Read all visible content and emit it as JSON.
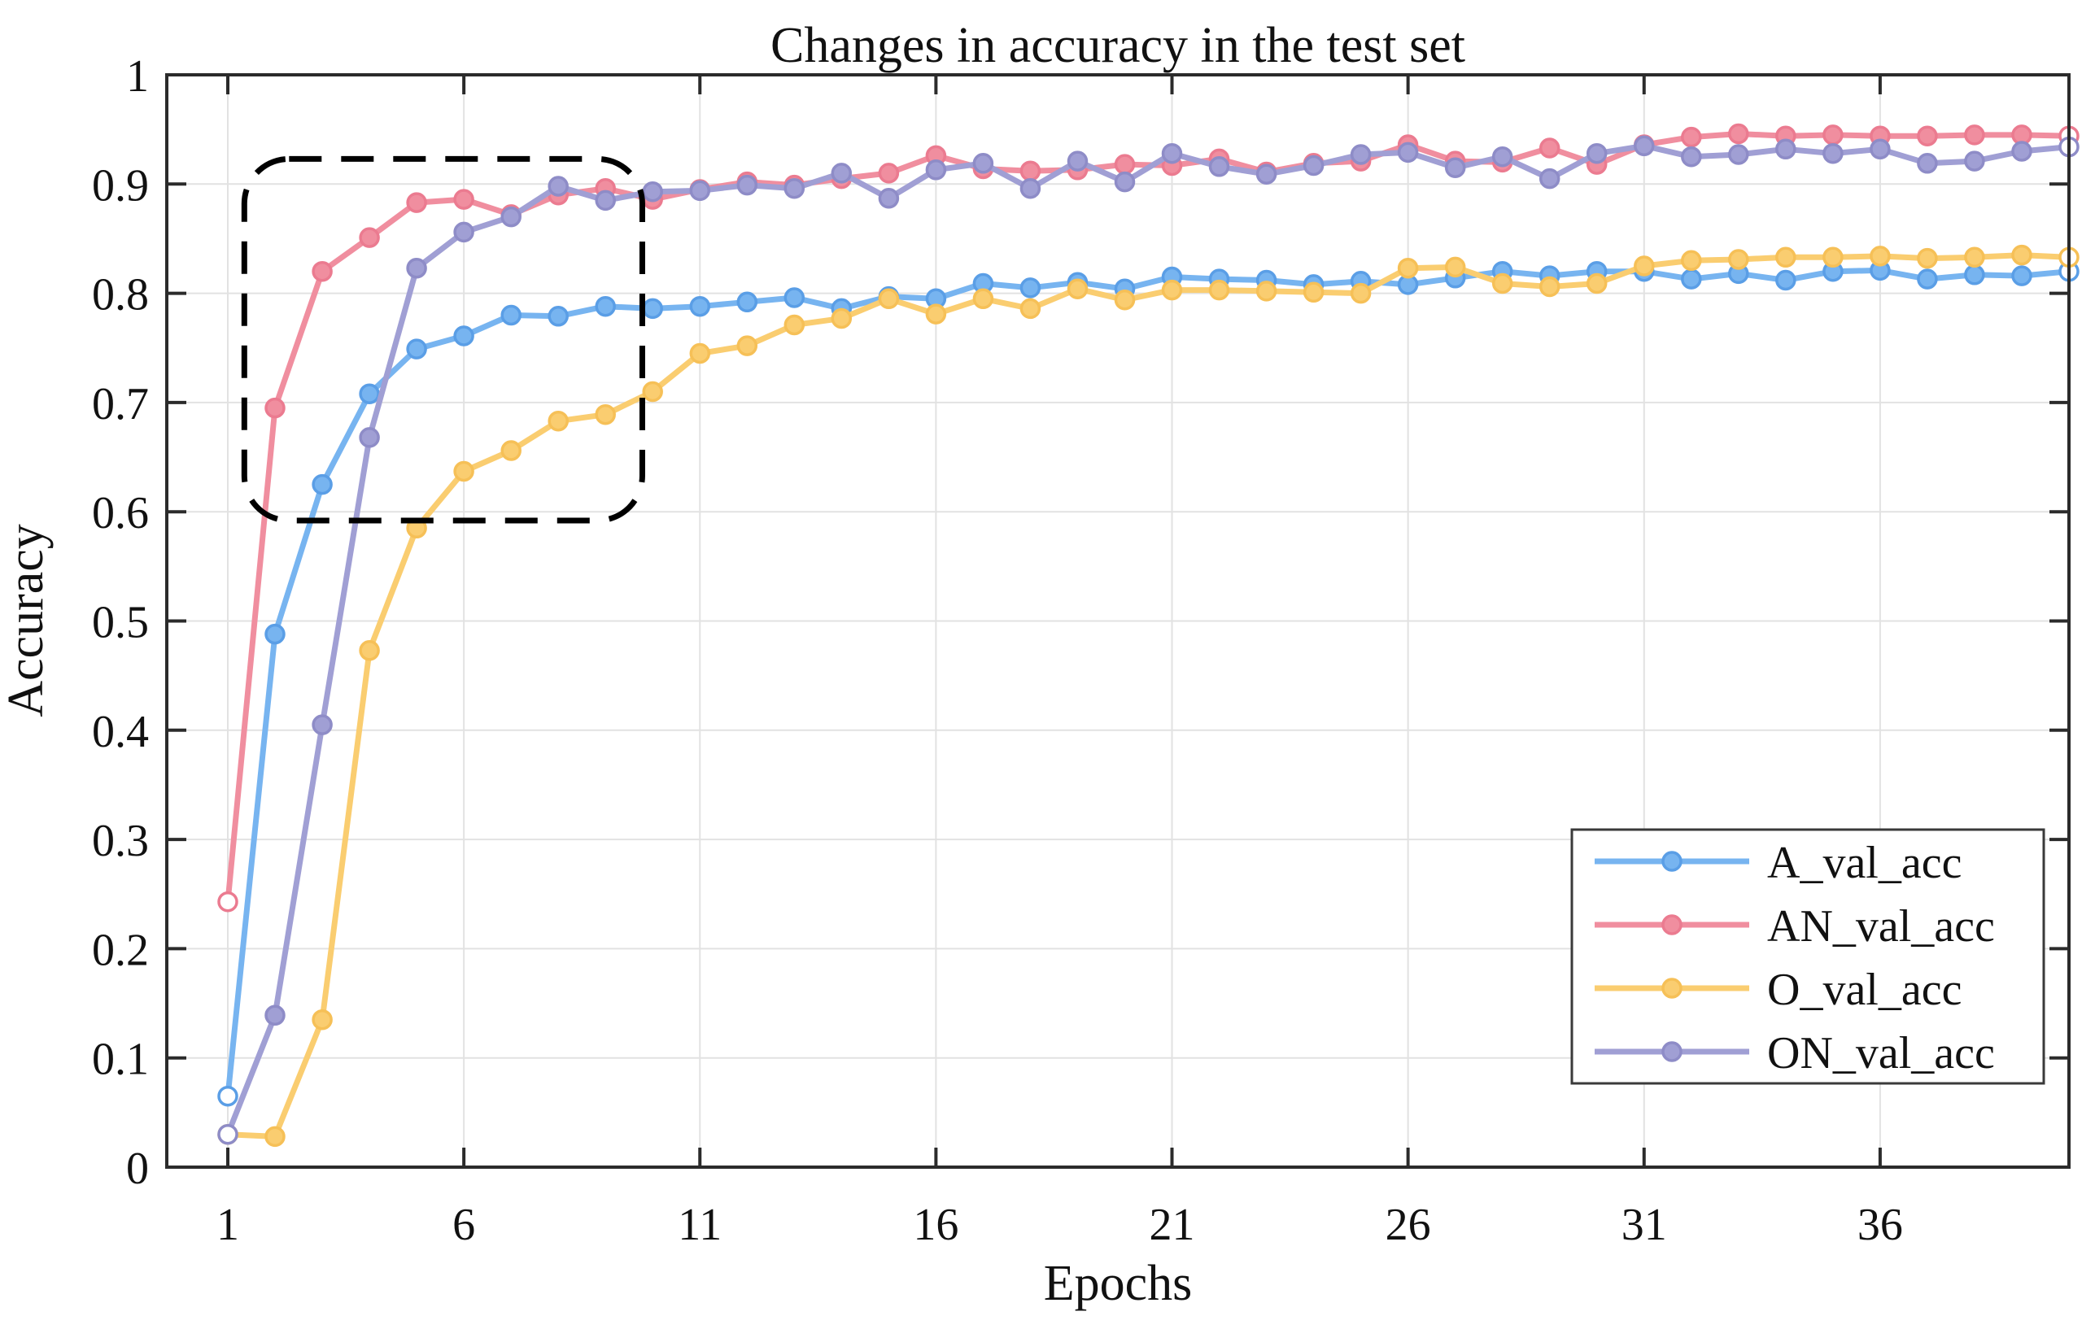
{
  "figure": {
    "background": "#ffffff",
    "frame_color": "#2b2b2b",
    "grid_color": "#e2e2e2",
    "text_color": "#111111",
    "annotation_color": "#000000"
  },
  "chart_data": {
    "type": "line",
    "title": "Changes in accuracy in the test set",
    "xlabel": "Epochs",
    "ylabel": "Accuracy",
    "x_ticks": [
      1,
      6,
      11,
      16,
      21,
      26,
      31,
      36
    ],
    "y_ticks": [
      0,
      0.1,
      0.2,
      0.3,
      0.4,
      0.5,
      0.6,
      0.7,
      0.8,
      0.9,
      1
    ],
    "y_tick_labels": [
      "0",
      "0.1",
      "0.2",
      "0.3",
      "0.4",
      "0.5",
      "0.6",
      "0.7",
      "0.8",
      "0.9",
      "1"
    ],
    "xlim": [
      -0.3,
      40
    ],
    "ylim": [
      0,
      1
    ],
    "grid": true,
    "legend_position": "lower-right",
    "x": [
      1,
      2,
      3,
      4,
      5,
      6,
      7,
      8,
      9,
      10,
      11,
      12,
      13,
      14,
      15,
      16,
      17,
      18,
      19,
      20,
      21,
      22,
      23,
      24,
      25,
      26,
      27,
      28,
      29,
      30,
      31,
      32,
      33,
      34,
      35,
      36,
      37,
      38,
      39,
      40
    ],
    "series": [
      {
        "name": "A_val_acc",
        "color": "#77b4f0",
        "marker_edge": "#5a9ee6",
        "values": [
          0.065,
          0.488,
          0.625,
          0.708,
          0.749,
          0.761,
          0.78,
          0.779,
          0.788,
          0.786,
          0.788,
          0.792,
          0.796,
          0.786,
          0.797,
          0.795,
          0.809,
          0.805,
          0.81,
          0.804,
          0.815,
          0.813,
          0.812,
          0.808,
          0.811,
          0.808,
          0.814,
          0.82,
          0.816,
          0.82,
          0.82,
          0.813,
          0.818,
          0.812,
          0.82,
          0.821,
          0.813,
          0.817,
          0.816,
          0.82
        ]
      },
      {
        "name": "AN_val_acc",
        "color": "#f08e9f",
        "marker_edge": "#eb7b90",
        "values": [
          0.243,
          0.695,
          0.82,
          0.851,
          0.883,
          0.886,
          0.872,
          0.89,
          0.896,
          0.886,
          0.895,
          0.902,
          0.899,
          0.905,
          0.91,
          0.926,
          0.914,
          0.912,
          0.913,
          0.918,
          0.917,
          0.923,
          0.911,
          0.919,
          0.921,
          0.936,
          0.921,
          0.92,
          0.933,
          0.918,
          0.936,
          0.943,
          0.946,
          0.944,
          0.945,
          0.944,
          0.944,
          0.945,
          0.945,
          0.944
        ]
      },
      {
        "name": "O_val_acc",
        "color": "#facd70",
        "marker_edge": "#f6c057",
        "values": [
          0.03,
          0.028,
          0.135,
          0.473,
          0.585,
          0.637,
          0.656,
          0.683,
          0.689,
          0.71,
          0.745,
          0.752,
          0.771,
          0.777,
          0.795,
          0.781,
          0.795,
          0.786,
          0.804,
          0.794,
          0.803,
          0.803,
          0.802,
          0.801,
          0.8,
          0.823,
          0.824,
          0.809,
          0.806,
          0.809,
          0.825,
          0.83,
          0.831,
          0.833,
          0.833,
          0.834,
          0.832,
          0.833,
          0.835,
          0.833
        ]
      },
      {
        "name": "ON_val_acc",
        "color": "#a09fd4",
        "marker_edge": "#8e8cc7",
        "values": [
          0.03,
          0.139,
          0.405,
          0.668,
          0.823,
          0.856,
          0.87,
          0.898,
          0.885,
          0.893,
          0.894,
          0.899,
          0.896,
          0.91,
          0.887,
          0.913,
          0.919,
          0.896,
          0.921,
          0.902,
          0.928,
          0.916,
          0.909,
          0.917,
          0.927,
          0.929,
          0.915,
          0.925,
          0.905,
          0.928,
          0.935,
          0.925,
          0.927,
          0.932,
          0.928,
          0.932,
          0.919,
          0.921,
          0.93,
          0.934
        ]
      }
    ],
    "annotation": {
      "type": "dashed-rounded-box",
      "x_range": [
        1.35,
        9.78
      ],
      "y_range": [
        0.592,
        0.923
      ]
    },
    "legend_labels": [
      "A_val_acc",
      "AN_val_acc",
      "O_val_acc",
      "ON_val_acc"
    ]
  }
}
